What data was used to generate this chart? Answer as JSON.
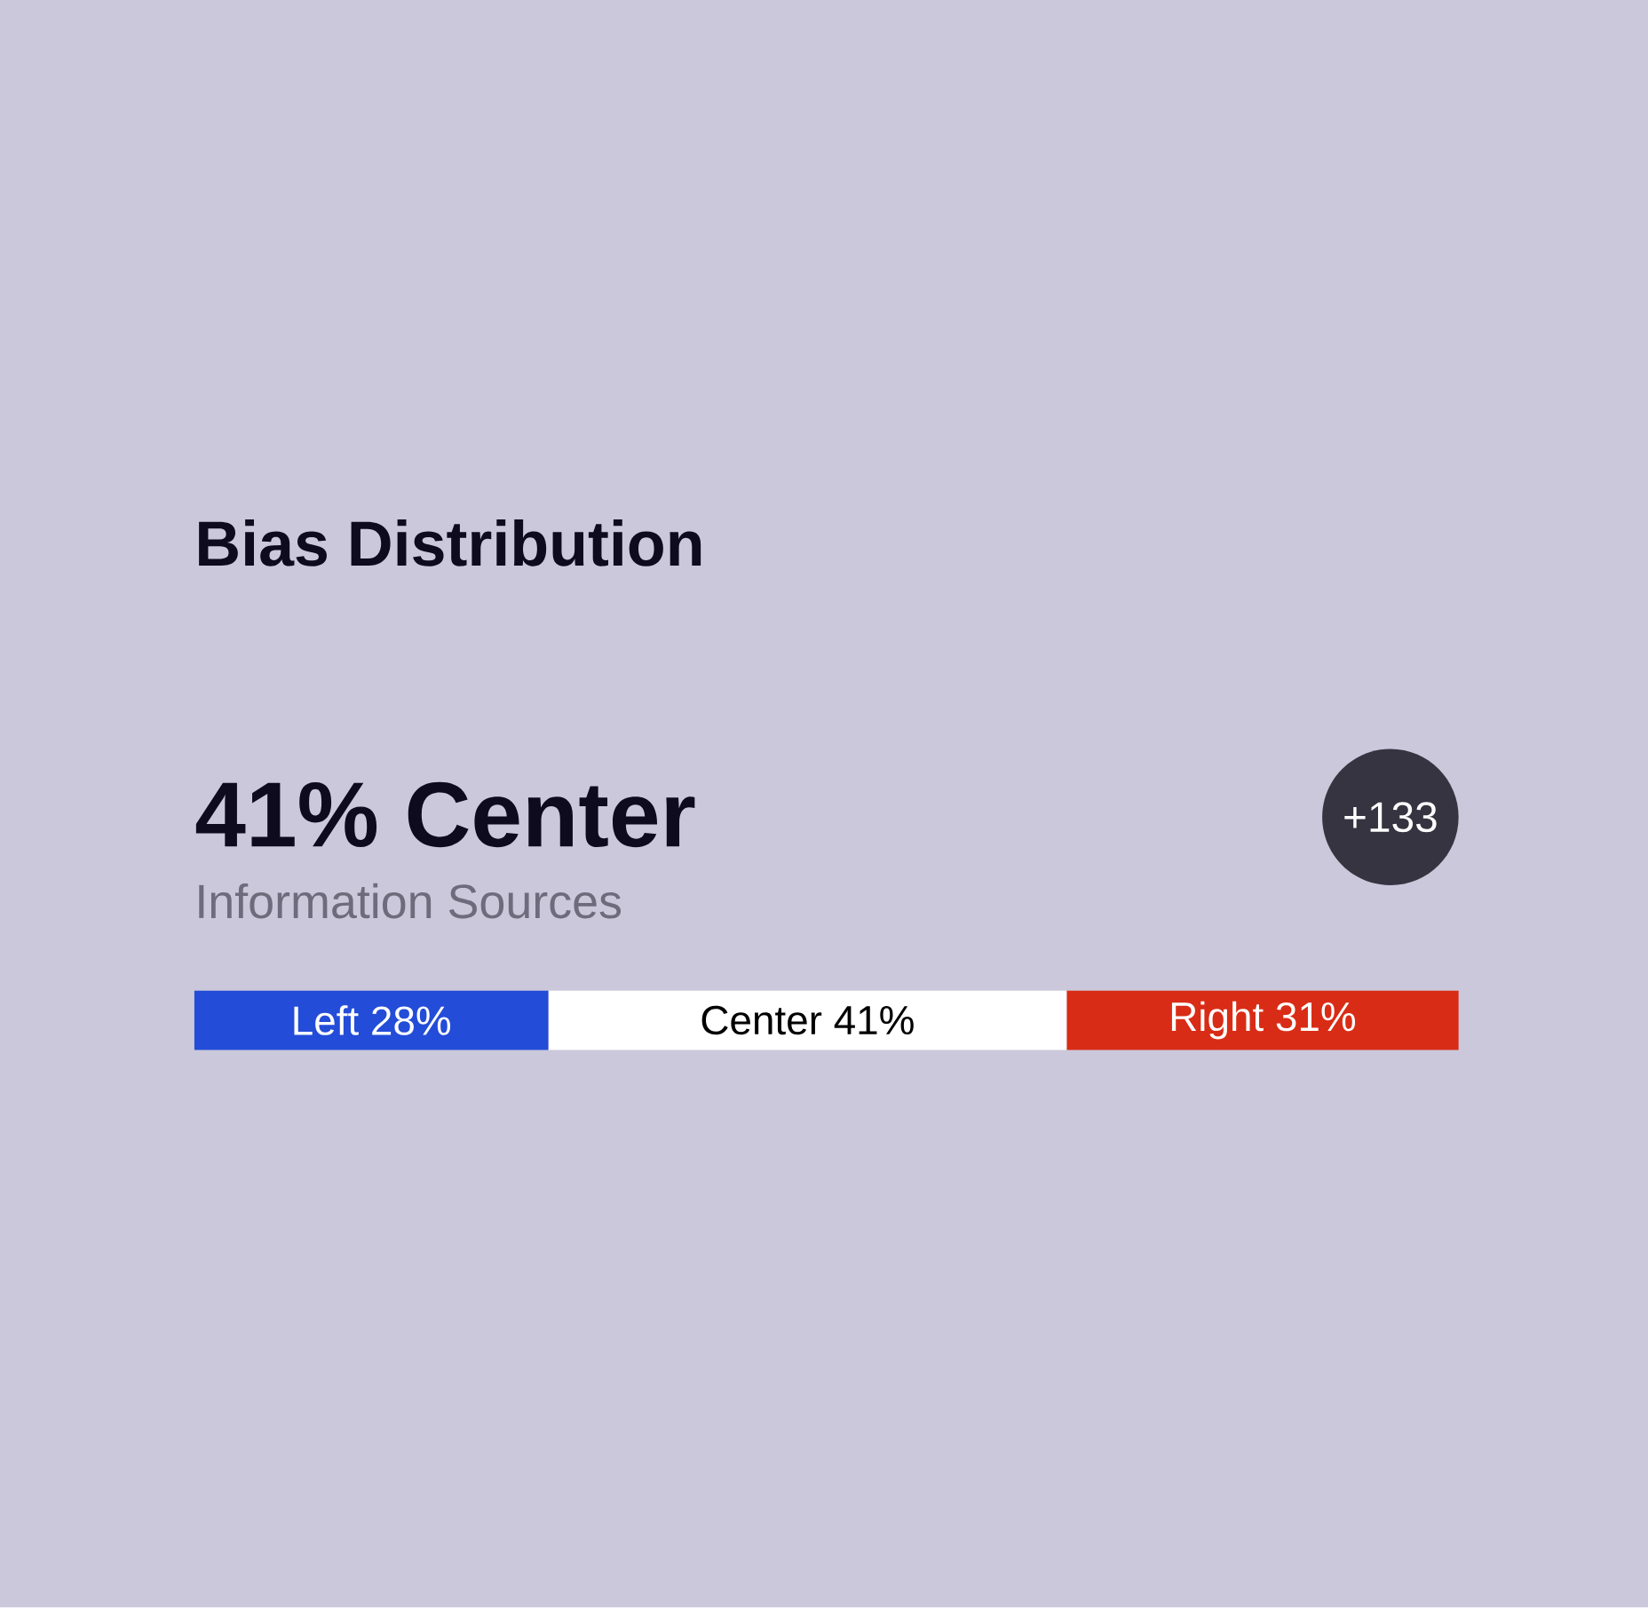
{
  "chart_data": {
    "type": "bar",
    "orientation": "horizontal",
    "stacked": true,
    "title": "Bias Distribution",
    "annotations": [
      "41% Center",
      "Information Sources",
      "+133"
    ],
    "categories": [
      null
    ],
    "series": [
      {
        "color": "#234cd8",
        "values": [
          28
        ],
        "value_labels": [
          "Left 28%"
        ]
      },
      {
        "color": "#ffffff",
        "values": [
          41
        ],
        "value_labels": [
          "Center 41%"
        ]
      },
      {
        "color": "#d92c16",
        "values": [
          31
        ],
        "value_labels": [
          "Right 31%"
        ]
      }
    ]
  }
}
